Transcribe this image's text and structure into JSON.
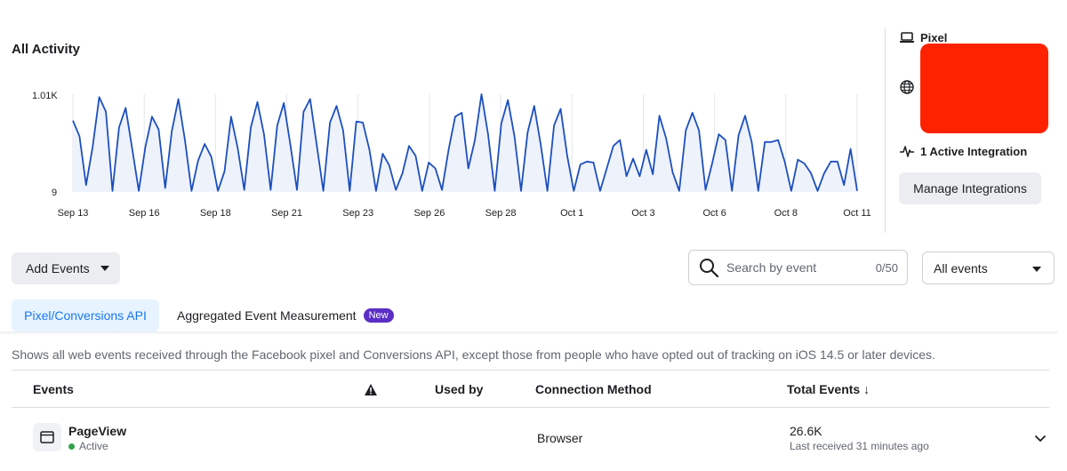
{
  "activity": {
    "title": "All Activity"
  },
  "chart_data": {
    "type": "area",
    "ylabels": [
      "1.01K",
      "9"
    ],
    "ylim": [
      9,
      1010
    ],
    "x_ticks": [
      "Sep 13",
      "Sep 16",
      "Sep 18",
      "Sep 21",
      "Sep 23",
      "Sep 26",
      "Sep 28",
      "Oct 1",
      "Oct 3",
      "Oct 6",
      "Oct 8",
      "Oct 11"
    ],
    "grid": "vertical",
    "values": [
      740,
      580,
      80,
      470,
      980,
      830,
      20,
      670,
      870,
      450,
      20,
      470,
      780,
      650,
      50,
      630,
      960,
      540,
      20,
      330,
      500,
      370,
      20,
      220,
      780,
      460,
      30,
      670,
      930,
      600,
      30,
      690,
      920,
      490,
      30,
      830,
      960,
      490,
      20,
      720,
      890,
      640,
      20,
      730,
      720,
      440,
      20,
      400,
      280,
      30,
      200,
      480,
      380,
      20,
      310,
      250,
      30,
      440,
      780,
      820,
      250,
      540,
      1010,
      600,
      20,
      710,
      950,
      580,
      20,
      620,
      890,
      490,
      20,
      690,
      860,
      380,
      20,
      290,
      320,
      310,
      20,
      250,
      480,
      540,
      170,
      350,
      170,
      440,
      190,
      790,
      560,
      210,
      20,
      640,
      820,
      640,
      30,
      300,
      600,
      540,
      20,
      590,
      790,
      520,
      20,
      520,
      520,
      540,
      320,
      20,
      340,
      300,
      200,
      20,
      200,
      320,
      320,
      80,
      450,
      20
    ]
  },
  "side": {
    "pixel_label": "Pixel",
    "integration_label": "1 Active Integration",
    "manage_button": "Manage Integrations",
    "redaction_color": "#ff2200"
  },
  "controls": {
    "add_events": "Add Events",
    "search_placeholder": "Search by event",
    "search_count": "0/50",
    "filter_value": "All events"
  },
  "tabs": {
    "active": "Pixel/Conversions API",
    "aem": "Aggregated Event Measurement",
    "new_badge": "New"
  },
  "description": "Shows all web events received through the Facebook pixel and Conversions API, except those from people who have opted out of tracking on iOS 14.5 or later devices.",
  "table": {
    "headers": {
      "events": "Events",
      "used_by": "Used by",
      "connection": "Connection Method",
      "total": "Total Events ↓"
    },
    "rows": [
      {
        "name": "PageView",
        "status": "Active",
        "connection": "Browser",
        "total": "26.6K",
        "last_received": "Last received 31 minutes ago"
      }
    ]
  },
  "colors": {
    "accent": "#1877f2",
    "line": "#1c4fbf",
    "fill": "#eef2fb",
    "active_dot": "#31a24c",
    "badge": "#5b2ec6"
  }
}
